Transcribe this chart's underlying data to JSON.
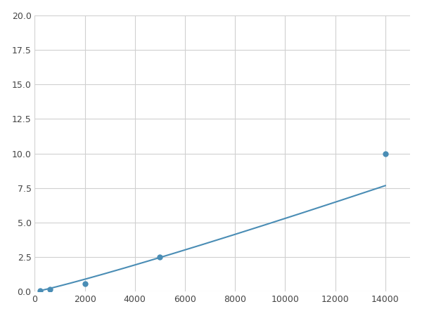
{
  "x_data": [
    200,
    600,
    2000,
    5000,
    14000
  ],
  "y_data": [
    0.1,
    0.2,
    0.6,
    2.5,
    10.0
  ],
  "line_color": "#4a8db5",
  "marker_color": "#4a8db5",
  "marker_size": 6,
  "xlim": [
    0,
    15000
  ],
  "ylim": [
    0,
    20.5
  ],
  "ylim_display": [
    0,
    20
  ],
  "xticks": [
    0,
    2000,
    4000,
    6000,
    8000,
    10000,
    12000,
    14000
  ],
  "yticks": [
    0.0,
    2.5,
    5.0,
    7.5,
    10.0,
    12.5,
    15.0,
    17.5,
    20.0
  ],
  "grid_color": "#d0d0d0",
  "background_color": "#ffffff",
  "figsize": [
    6.0,
    4.5
  ],
  "dpi": 100
}
